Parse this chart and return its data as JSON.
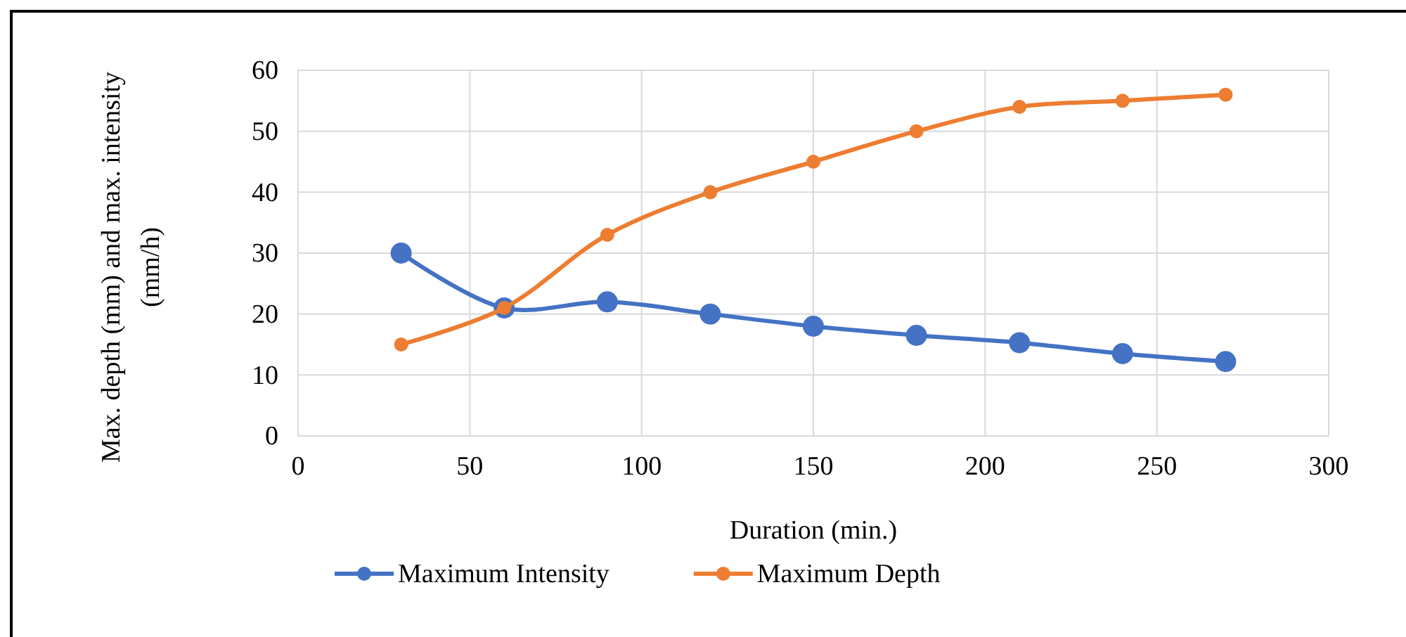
{
  "chart_data": {
    "type": "line",
    "xlabel": "Duration (min.)",
    "ylabel": "Max. depth (mm) and max. intensity (mm/h)",
    "x": [
      30,
      60,
      90,
      120,
      150,
      180,
      210,
      240,
      270
    ],
    "series": [
      {
        "name": "Maximum Intensity",
        "color": "#4472c4",
        "values": [
          30,
          21,
          22,
          20,
          18,
          16.5,
          15.3,
          13.5,
          12.2
        ]
      },
      {
        "name": "Maximum Depth",
        "color": "#ed7d31",
        "values": [
          15,
          21,
          33,
          40,
          45,
          50,
          54,
          55,
          56
        ]
      }
    ],
    "xlim": [
      0,
      300
    ],
    "xticks": [
      0,
      50,
      100,
      150,
      200,
      250,
      300
    ],
    "ylim": [
      0,
      60
    ],
    "yticks": [
      0,
      10,
      20,
      30,
      40,
      50,
      60
    ],
    "grid": true,
    "legend": "bottom",
    "marker": "circle",
    "line_style": "solid"
  }
}
